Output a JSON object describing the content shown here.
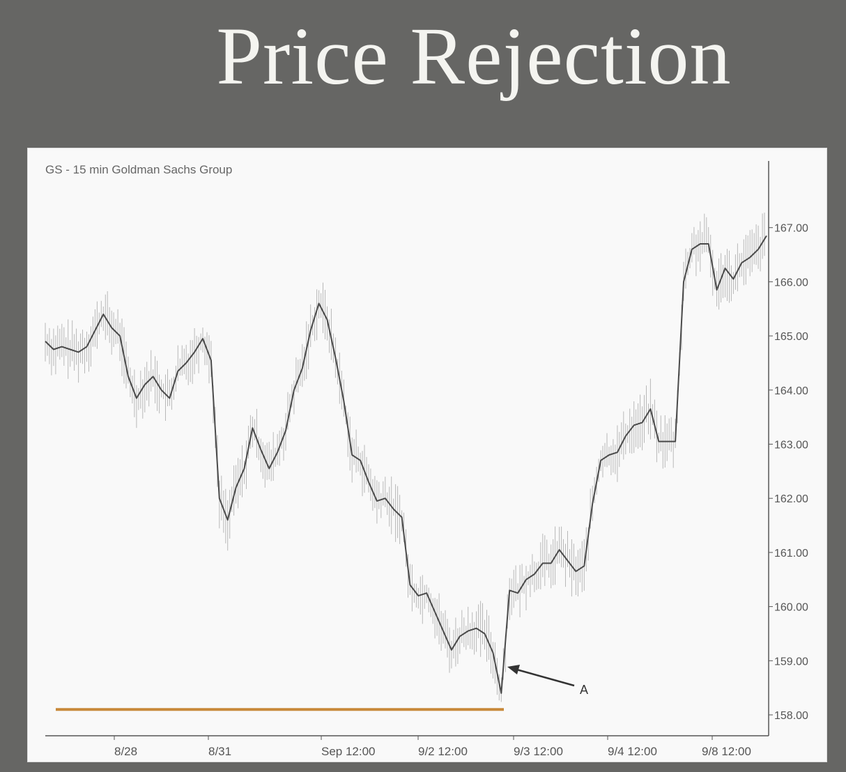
{
  "slide": {
    "title": "Price Rejection"
  },
  "chart_data": {
    "type": "line",
    "title": "GS - 15 min  Goldman Sachs Group",
    "xlabel": "",
    "ylabel": "",
    "ylim": [
      157.6,
      168.2
    ],
    "y_ticks": [
      "158.00",
      "159.00",
      "160.00",
      "161.00",
      "162.00",
      "163.00",
      "164.00",
      "165.00",
      "166.00",
      "167.00"
    ],
    "x_ticks": [
      "8/28",
      "8/31",
      "Sep 12:00",
      "9/2  12:00",
      "9/3  12:00",
      "9/4  12:00",
      "9/8  12:00"
    ],
    "series": [
      {
        "values": [
          164.9,
          164.75,
          164.8,
          164.75,
          164.7,
          164.8,
          165.1,
          165.4,
          165.15,
          165.0,
          164.25,
          163.85,
          164.1,
          164.25,
          164.0,
          163.85,
          164.35,
          164.5,
          164.7,
          164.95,
          164.55,
          162.0,
          161.6,
          162.2,
          162.55,
          163.3,
          162.9,
          162.55,
          162.85,
          163.25,
          164.0,
          164.4,
          165.1,
          165.6,
          165.3,
          164.6,
          163.8,
          162.8,
          162.7,
          162.3,
          161.95,
          162.0,
          161.8,
          161.65,
          160.4,
          160.2,
          160.25,
          159.9,
          159.55,
          159.2,
          159.45,
          159.55,
          159.6,
          159.5,
          159.15,
          158.4,
          160.3,
          160.25,
          160.5,
          160.6,
          160.8,
          160.8,
          161.05,
          160.85,
          160.65,
          160.75,
          161.9,
          162.7,
          162.8,
          162.85,
          163.15,
          163.35,
          163.4,
          163.65,
          163.05,
          163.05,
          163.05,
          166.0,
          166.6,
          166.7,
          166.7,
          165.85,
          166.25,
          166.05,
          166.35,
          166.45,
          166.6,
          166.85
        ]
      }
    ],
    "support_line": {
      "value": 158.1,
      "color": "#c8893a"
    },
    "annotations": [
      {
        "label": "A",
        "target": "low at 9/3"
      }
    ],
    "grid": false,
    "colors": {
      "price": "#4a4a4a",
      "bars": "#b8b8b8",
      "axis": "#555555",
      "support": "#c8893a"
    }
  }
}
